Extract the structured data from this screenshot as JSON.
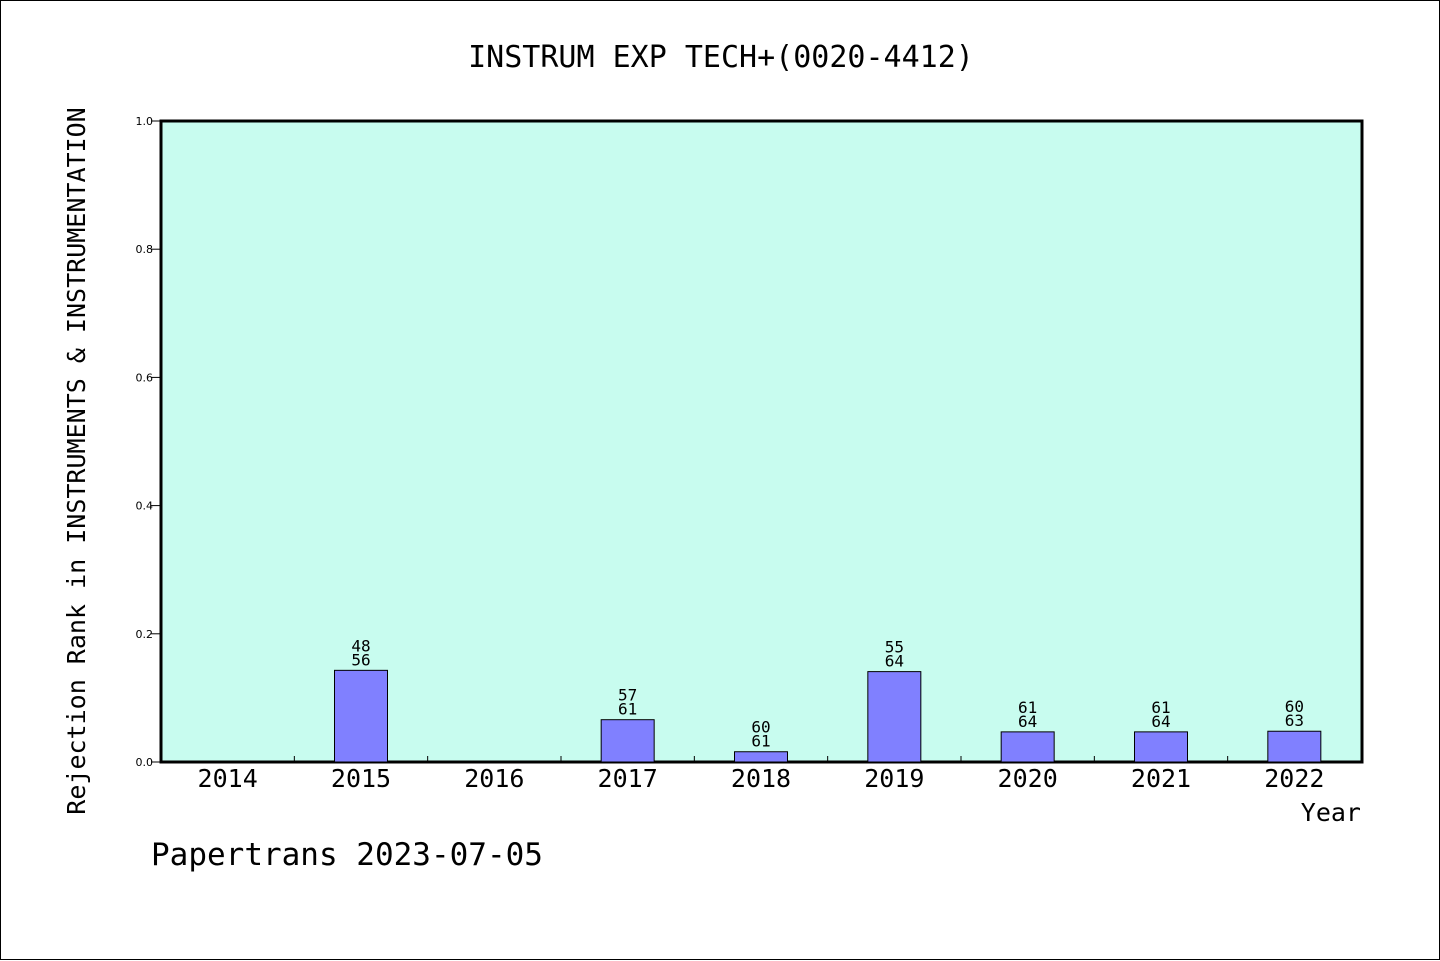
{
  "footer": "Papertrans 2023-07-05",
  "chart_data": {
    "type": "bar",
    "title": "INSTRUM EXP TECH+(0020-4412)",
    "xlabel": "Year",
    "ylabel": "Rejection Rank in INSTRUMENTS & INSTRUMENTATION",
    "categories": [
      "2014",
      "2015",
      "2016",
      "2017",
      "2018",
      "2019",
      "2020",
      "2021",
      "2022"
    ],
    "values": [
      0,
      0.143,
      0,
      0.066,
      0.016,
      0.141,
      0.047,
      0.047,
      0.048
    ],
    "labels_top": [
      "",
      "48",
      "",
      "57",
      "60",
      "55",
      "61",
      "61",
      "60"
    ],
    "labels_bottom": [
      "",
      "56",
      "",
      "61",
      "61",
      "64",
      "64",
      "64",
      "63"
    ],
    "ylim": [
      0,
      1.0
    ],
    "yticks": [
      "0.0",
      "0.2",
      "0.4",
      "0.6",
      "0.8",
      "1.0"
    ],
    "grid": false,
    "colors": {
      "plot_background": "#c8fcef",
      "bar_fill": "#8080ff",
      "bar_stroke": "#000000"
    }
  }
}
